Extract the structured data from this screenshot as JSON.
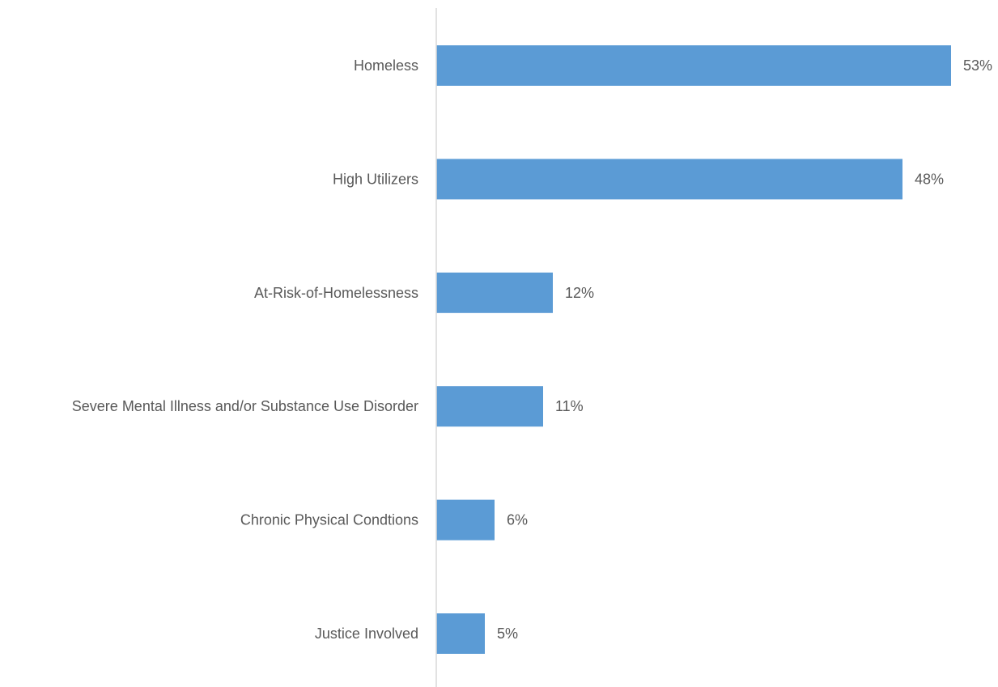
{
  "chart_data": {
    "type": "bar",
    "orientation": "horizontal",
    "categories": [
      "Homeless",
      "High Utilizers",
      "At-Risk-of-Homelessness",
      "Severe Mental Illness and/or Substance Use Disorder",
      "Chronic Physical Condtions",
      "Justice Involved"
    ],
    "values": [
      53,
      48,
      12,
      11,
      6,
      5
    ],
    "data_labels": [
      "53%",
      "48%",
      "12%",
      "11%",
      "6%",
      "5%"
    ],
    "unit": "%",
    "title": "",
    "xlabel": "",
    "ylabel": "",
    "xlim": [
      0,
      53
    ],
    "grid": false,
    "legend": "none",
    "colors": {
      "bar": "#5B9BD5",
      "axis": "#D9D9D9",
      "text": "#595959"
    }
  }
}
